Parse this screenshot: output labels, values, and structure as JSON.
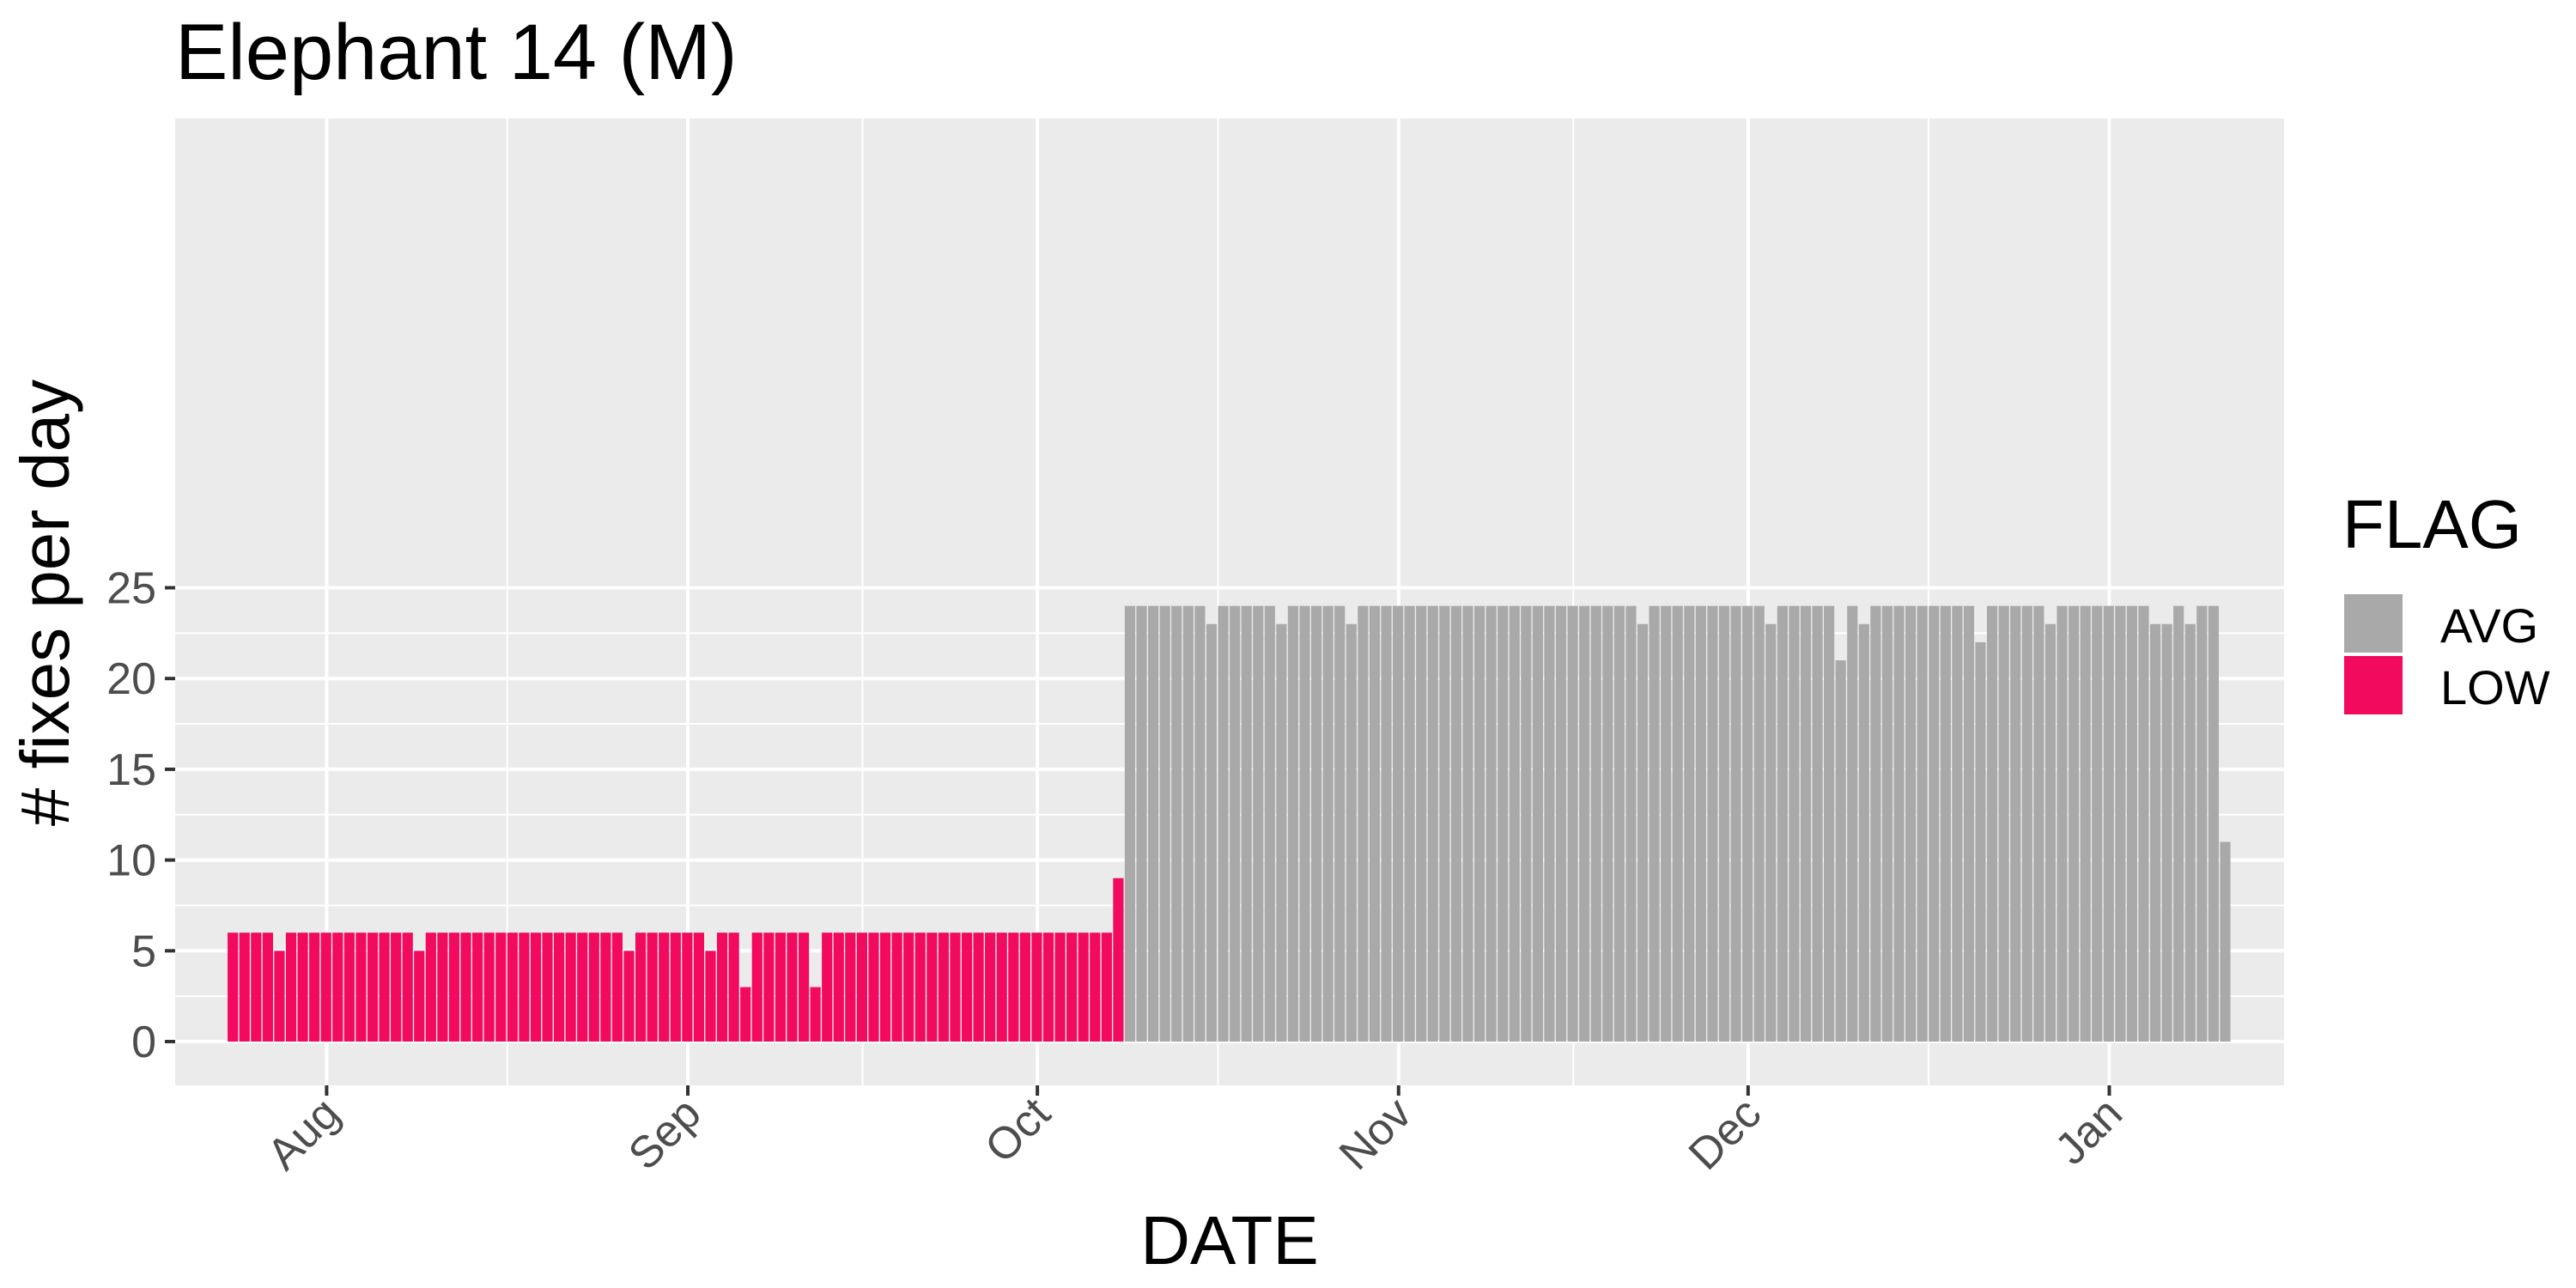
{
  "chart_data": {
    "type": "bar",
    "title": "Elephant 14 (M)",
    "xlabel": "DATE",
    "ylabel": "# fixes per day",
    "ylim": [
      0,
      25
    ],
    "yticks": [
      "0",
      "5",
      "10",
      "15",
      "20",
      "25"
    ],
    "x_tick_labels": [
      "Aug",
      "Sep",
      "Oct",
      "Nov",
      "Dec",
      "Jan"
    ],
    "x_tick_dates": [
      "2019-08-01",
      "2019-09-01",
      "2019-10-01",
      "2019-11-01",
      "2019-12-01",
      "2020-01-01"
    ],
    "x_range": [
      "2019-07-19",
      "2020-01-16"
    ],
    "start_date": "2019-07-24",
    "grid": true,
    "legend_title": "FLAG",
    "legend_position": "right",
    "legend": [
      {
        "name": "AVG",
        "color": "#a9a9a9"
      },
      {
        "name": "LOW",
        "color": "#f20a5e"
      }
    ],
    "flags": [
      "LOW",
      "LOW",
      "LOW",
      "LOW",
      "LOW",
      "LOW",
      "LOW",
      "LOW",
      "LOW",
      "LOW",
      "LOW",
      "LOW",
      "LOW",
      "LOW",
      "LOW",
      "LOW",
      "LOW",
      "LOW",
      "LOW",
      "LOW",
      "LOW",
      "LOW",
      "LOW",
      "LOW",
      "LOW",
      "LOW",
      "LOW",
      "LOW",
      "LOW",
      "LOW",
      "LOW",
      "LOW",
      "LOW",
      "LOW",
      "LOW",
      "LOW",
      "LOW",
      "LOW",
      "LOW",
      "LOW",
      "LOW",
      "LOW",
      "LOW",
      "LOW",
      "LOW",
      "LOW",
      "LOW",
      "LOW",
      "LOW",
      "LOW",
      "LOW",
      "LOW",
      "LOW",
      "LOW",
      "LOW",
      "LOW",
      "LOW",
      "LOW",
      "LOW",
      "LOW",
      "LOW",
      "LOW",
      "LOW",
      "LOW",
      "LOW",
      "LOW",
      "LOW",
      "LOW",
      "LOW",
      "LOW",
      "LOW",
      "LOW",
      "LOW",
      "LOW",
      "LOW",
      "LOW",
      "LOW",
      "AVG",
      "AVG",
      "AVG",
      "AVG",
      "AVG",
      "AVG",
      "AVG",
      "AVG",
      "AVG",
      "AVG",
      "AVG",
      "AVG",
      "AVG",
      "AVG",
      "AVG",
      "AVG",
      "AVG",
      "AVG",
      "AVG",
      "AVG",
      "AVG",
      "AVG",
      "AVG",
      "AVG",
      "AVG",
      "AVG",
      "AVG",
      "AVG",
      "AVG",
      "AVG",
      "AVG",
      "AVG",
      "AVG",
      "AVG",
      "AVG",
      "AVG",
      "AVG",
      "AVG",
      "AVG",
      "AVG",
      "AVG",
      "AVG",
      "AVG",
      "AVG",
      "AVG",
      "AVG",
      "AVG",
      "AVG",
      "AVG",
      "AVG",
      "AVG",
      "AVG",
      "AVG",
      "AVG",
      "AVG",
      "AVG",
      "AVG",
      "AVG",
      "AVG",
      "AVG",
      "AVG",
      "AVG",
      "AVG",
      "AVG",
      "AVG",
      "AVG",
      "AVG",
      "AVG",
      "AVG",
      "AVG",
      "AVG",
      "AVG",
      "AVG",
      "AVG",
      "AVG",
      "AVG",
      "AVG",
      "AVG",
      "AVG",
      "AVG",
      "AVG",
      "AVG",
      "AVG",
      "AVG",
      "AVG",
      "AVG",
      "AVG",
      "AVG",
      "AVG",
      "AVG",
      "AVG",
      "AVG",
      "AVG",
      "AVG",
      "AVG",
      "AVG",
      "AVG",
      "AVG",
      "AVG",
      "AVG",
      "AVG",
      "AVG",
      "AVG",
      "AVG",
      "LOW"
    ],
    "values": [
      6,
      6,
      6,
      6,
      5,
      6,
      6,
      6,
      6,
      6,
      6,
      6,
      6,
      6,
      6,
      6,
      5,
      6,
      6,
      6,
      6,
      6,
      6,
      6,
      6,
      6,
      6,
      6,
      6,
      6,
      6,
      6,
      6,
      6,
      5,
      6,
      6,
      6,
      6,
      6,
      6,
      5,
      6,
      6,
      3,
      6,
      6,
      6,
      6,
      6,
      3,
      6,
      6,
      6,
      6,
      6,
      6,
      6,
      6,
      6,
      6,
      6,
      6,
      6,
      6,
      6,
      6,
      6,
      6,
      6,
      6,
      6,
      6,
      6,
      6,
      6,
      9,
      24,
      24,
      24,
      24,
      24,
      24,
      24,
      23,
      24,
      24,
      24,
      24,
      24,
      23,
      24,
      24,
      24,
      24,
      24,
      23,
      24,
      24,
      24,
      24,
      24,
      24,
      24,
      24,
      24,
      24,
      24,
      24,
      24,
      24,
      24,
      24,
      24,
      24,
      24,
      24,
      24,
      24,
      24,
      24,
      23,
      24,
      24,
      24,
      24,
      24,
      24,
      24,
      24,
      24,
      24,
      23,
      24,
      24,
      24,
      24,
      24,
      21,
      24,
      23,
      24,
      24,
      24,
      24,
      24,
      24,
      24,
      24,
      24,
      22,
      24,
      24,
      24,
      24,
      24,
      23,
      24,
      24,
      24,
      24,
      24,
      24,
      24,
      24,
      23,
      23,
      24,
      23,
      24,
      24,
      11
    ]
  }
}
